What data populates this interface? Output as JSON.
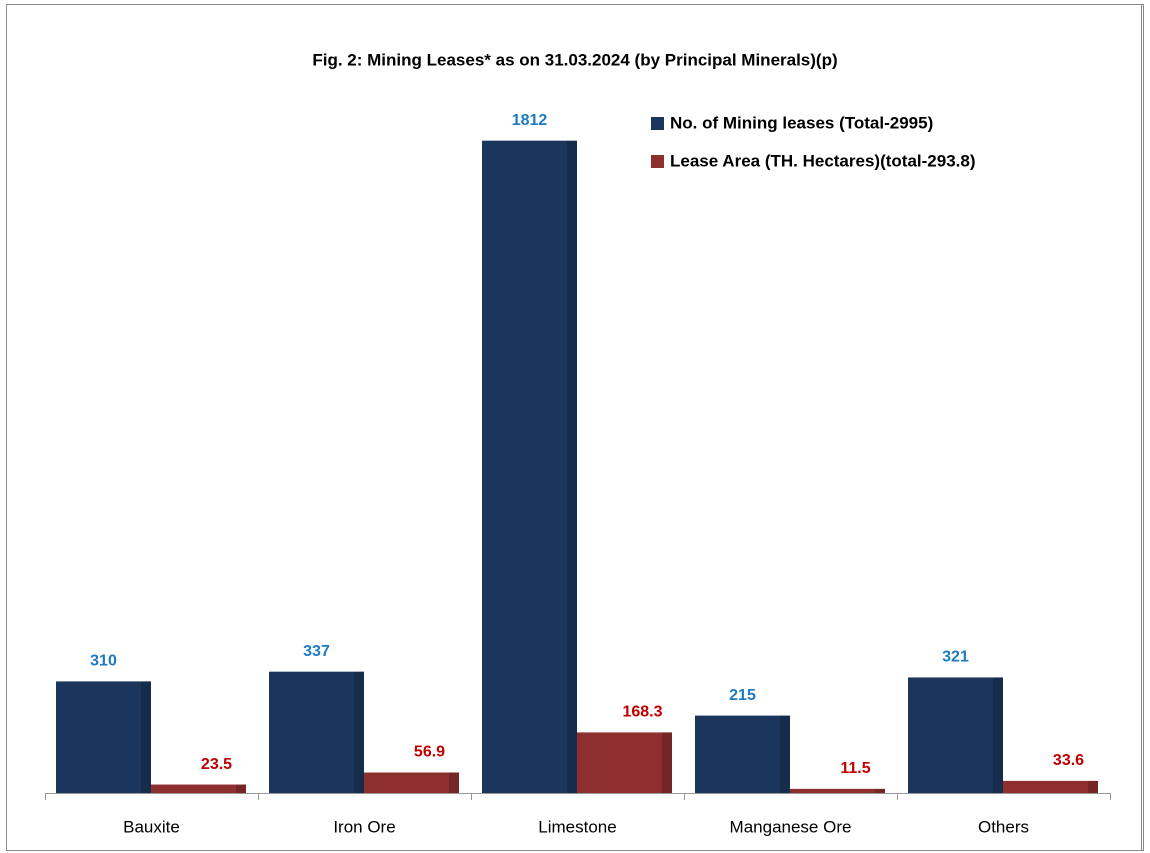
{
  "chart_data": {
    "type": "bar",
    "title": "Fig. 2: Mining Leases* as on 31.03.2024 (by Principal Minerals)(p)",
    "categories": [
      "Bauxite",
      "Iron Ore",
      "Limestone",
      "Manganese Ore",
      "Others"
    ],
    "series": [
      {
        "name": "No. of Mining leases (Total-2995)",
        "color": "#1b365d",
        "label_color": "#1f7bc1",
        "values": [
          310,
          337,
          1812,
          215,
          321
        ]
      },
      {
        "name": "Lease Area (TH. Hectares)(total-293.8)",
        "color": "#8e2f2f",
        "label_color": "#c00000",
        "values": [
          23.5,
          56.9,
          168.3,
          11.5,
          33.6
        ]
      }
    ],
    "ylim": [
      0,
      2000
    ],
    "legend": "top-right"
  }
}
